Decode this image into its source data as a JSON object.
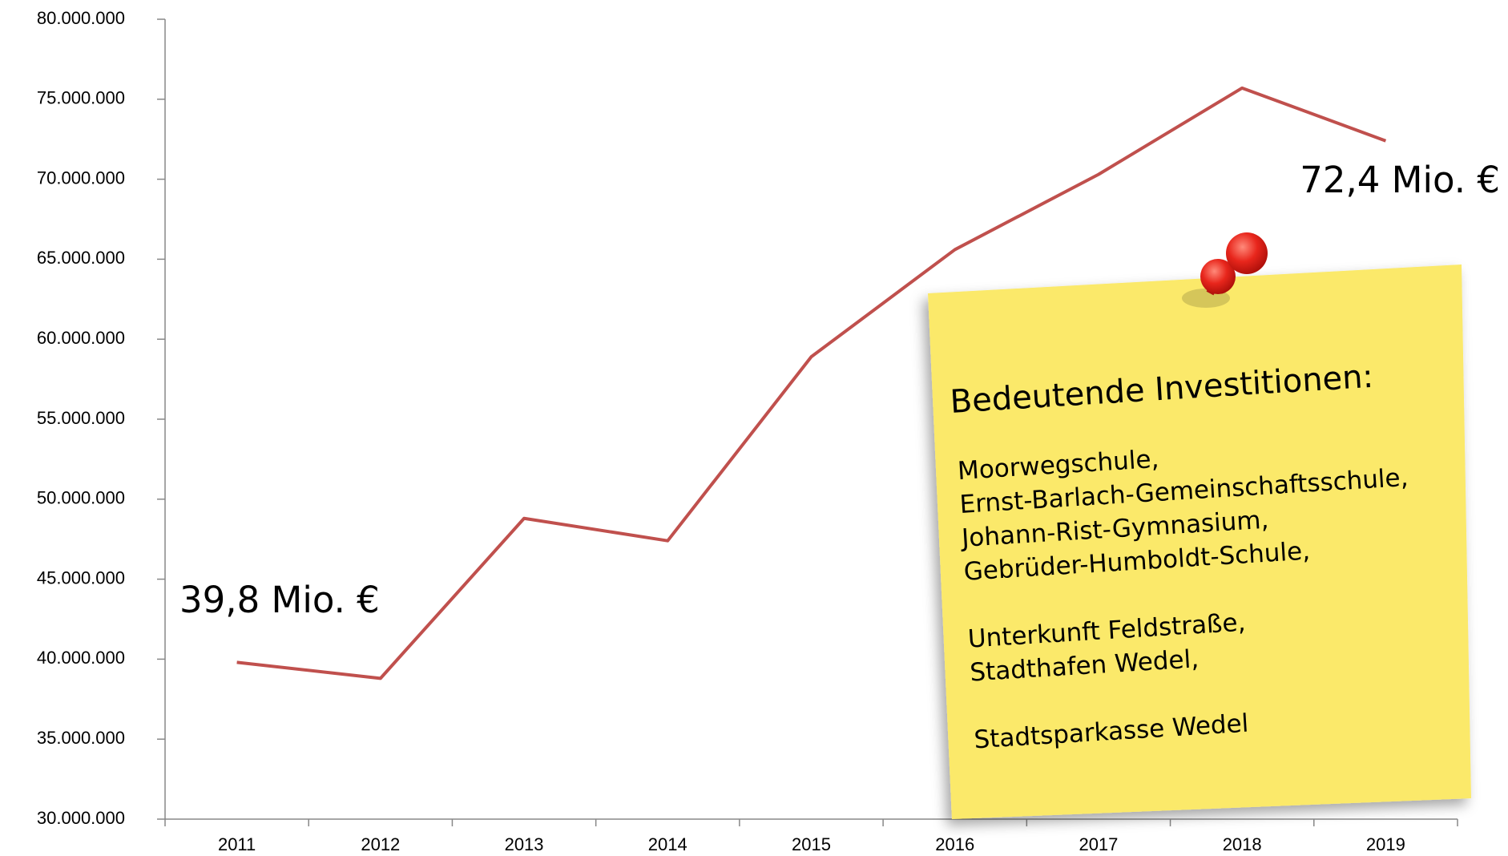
{
  "chart_data": {
    "type": "line",
    "categories": [
      "2011",
      "2012",
      "2013",
      "2014",
      "2015",
      "2016",
      "2017",
      "2018",
      "2019"
    ],
    "series": [
      {
        "color": "#c0504d",
        "values": [
          39800000,
          38800000,
          48800000,
          47400000,
          58900000,
          65600000,
          70300000,
          75700000,
          72400000
        ]
      }
    ],
    "ylim": [
      30000000,
      80000000
    ],
    "yticks": [
      {
        "value": 30000000,
        "label": "30.000.000"
      },
      {
        "value": 35000000,
        "label": "35.000.000"
      },
      {
        "value": 40000000,
        "label": "40.000.000"
      },
      {
        "value": 45000000,
        "label": "45.000.000"
      },
      {
        "value": 50000000,
        "label": "50.000.000"
      },
      {
        "value": 55000000,
        "label": "55.000.000"
      },
      {
        "value": 60000000,
        "label": "60.000.000"
      },
      {
        "value": 65000000,
        "label": "65.000.000"
      },
      {
        "value": 70000000,
        "label": "70.000.000"
      },
      {
        "value": 75000000,
        "label": "75.000.000"
      },
      {
        "value": 80000000,
        "label": "80.000.000"
      }
    ],
    "annotations": [
      "39,8 Mio. €",
      "72,4 Mio. €"
    ],
    "note": {
      "title": "Bedeutende Investitionen:",
      "groups": [
        [
          "Moorwegschule,",
          "Ernst-Barlach-Gemeinschaftsschule,",
          "Johann-Rist-Gymnasium,",
          "Gebrüder-Humboldt-Schule,"
        ],
        [
          "Unterkunft Feldstraße,",
          "Stadthafen Wedel,"
        ],
        [
          "Stadtsparkasse Wedel"
        ]
      ]
    }
  }
}
